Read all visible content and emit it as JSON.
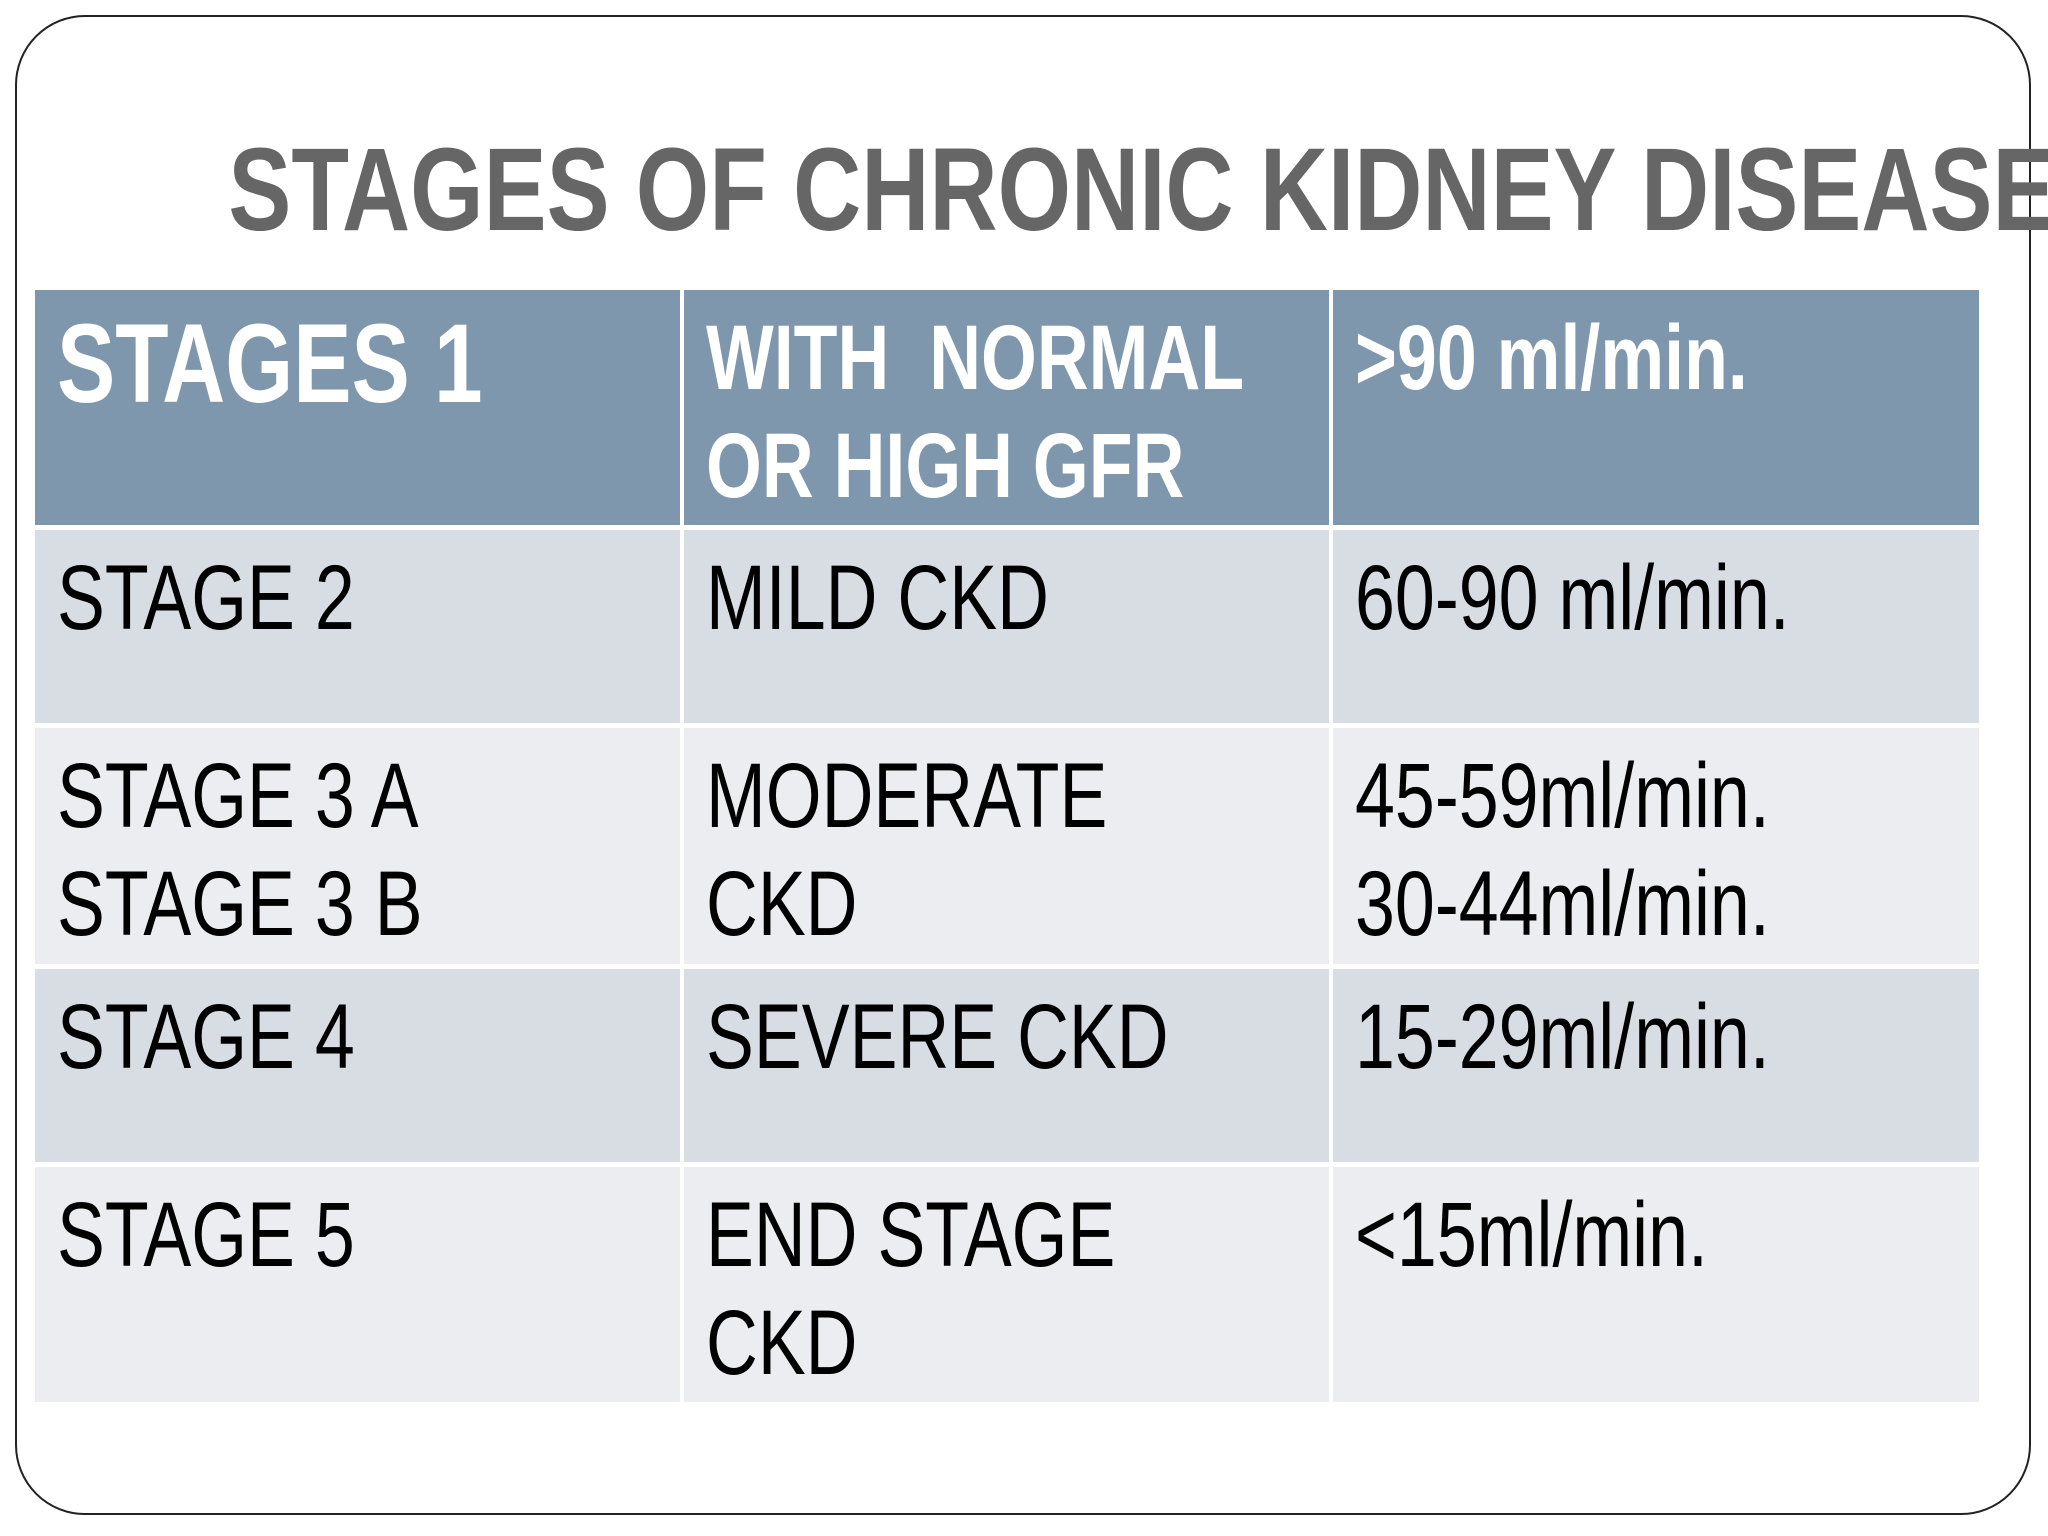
{
  "title": "STAGES OF CHRONIC KIDNEY DISEASE",
  "colors": {
    "header_bg": "#7e97ad",
    "row_dark": "#d8dde3",
    "row_light": "#ecedf0",
    "title": "#666666"
  },
  "rows": [
    {
      "stage": [
        "STAGES 1"
      ],
      "description": [
        "WITH  NORMAL",
        "OR HIGH GFR"
      ],
      "gfr": [
        ">90 ml/min."
      ]
    },
    {
      "stage": [
        "STAGE 2"
      ],
      "description": [
        "MILD CKD"
      ],
      "gfr": [
        "60-90 ml/min."
      ]
    },
    {
      "stage": [
        "STAGE 3 A",
        "STAGE 3 B"
      ],
      "description": [
        "MODERATE",
        "CKD"
      ],
      "gfr": [
        "45-59ml/min.",
        "30-44ml/min."
      ]
    },
    {
      "stage": [
        "STAGE 4"
      ],
      "description": [
        "SEVERE CKD"
      ],
      "gfr": [
        "15-29ml/min."
      ]
    },
    {
      "stage": [
        "STAGE 5"
      ],
      "description": [
        "END STAGE",
        "CKD"
      ],
      "gfr": [
        "<15ml/min."
      ]
    }
  ]
}
